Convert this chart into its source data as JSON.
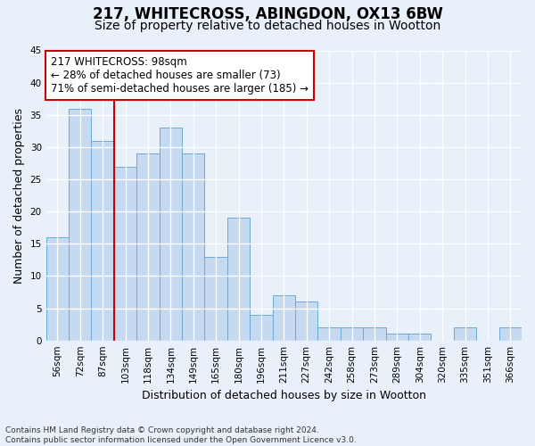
{
  "title_line1": "217, WHITECROSS, ABINGDON, OX13 6BW",
  "title_line2": "Size of property relative to detached houses in Wootton",
  "xlabel": "Distribution of detached houses by size in Wootton",
  "ylabel": "Number of detached properties",
  "bar_labels": [
    "56sqm",
    "72sqm",
    "87sqm",
    "103sqm",
    "118sqm",
    "134sqm",
    "149sqm",
    "165sqm",
    "180sqm",
    "196sqm",
    "211sqm",
    "227sqm",
    "242sqm",
    "258sqm",
    "273sqm",
    "289sqm",
    "304sqm",
    "320sqm",
    "335sqm",
    "351sqm",
    "366sqm"
  ],
  "bar_values": [
    16,
    36,
    31,
    27,
    29,
    33,
    29,
    13,
    19,
    4,
    7,
    6,
    2,
    2,
    2,
    1,
    1,
    0,
    2,
    0,
    2
  ],
  "bar_color": "#c5d9f0",
  "bar_edge_color": "#6aaad4",
  "vline_x_idx": 2,
  "vline_color": "#cc0000",
  "annotation_line1": "217 WHITECROSS: 98sqm",
  "annotation_line2": "← 28% of detached houses are smaller (73)",
  "annotation_line3": "71% of semi-detached houses are larger (185) →",
  "annotation_box_color": "#ffffff",
  "annotation_box_edge": "#cc0000",
  "ylim": [
    0,
    45
  ],
  "yticks": [
    0,
    5,
    10,
    15,
    20,
    25,
    30,
    35,
    40,
    45
  ],
  "bg_color": "#e8f0fa",
  "plot_bg_color": "#e8f0fa",
  "footer_line1": "Contains HM Land Registry data © Crown copyright and database right 2024.",
  "footer_line2": "Contains public sector information licensed under the Open Government Licence v3.0.",
  "title_fontsize": 12,
  "subtitle_fontsize": 10,
  "xlabel_fontsize": 9,
  "ylabel_fontsize": 9,
  "tick_fontsize": 7.5,
  "annotation_fontsize": 8.5,
  "footer_fontsize": 6.5
}
